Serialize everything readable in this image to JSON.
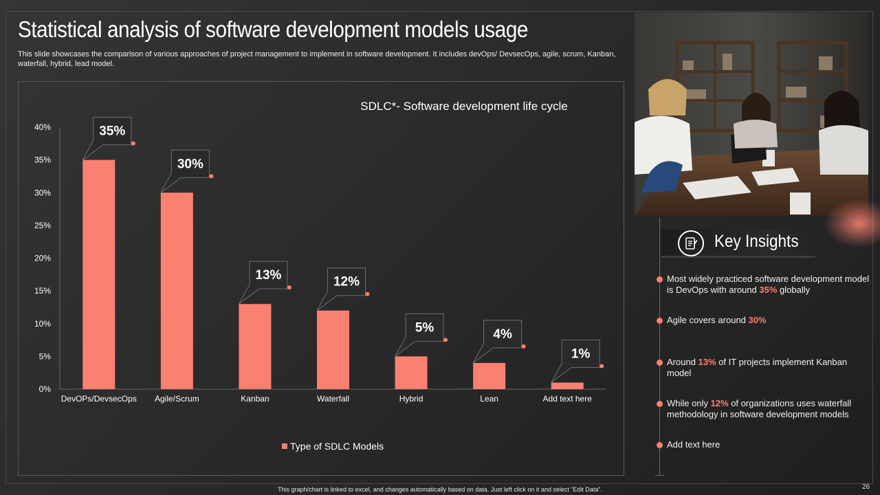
{
  "slide": {
    "title": "Statistical analysis of software development models usage",
    "subtitle": "This slide showcases the comparison of various approaches of project management to implement in software development. It includes devOps/ DevsecOps, agile, scrum, Kanban, waterfall, hybrid, lead model.",
    "footnote": "This graph/chart is linked to excel, and changes automatically based on data.  Just left click on it and select “Edit Data”.",
    "page_number": "26"
  },
  "colors": {
    "accent": "#fa8072",
    "background": "#2b2b2b",
    "text": "#ffffff"
  },
  "chart_data": {
    "type": "bar",
    "title": "SDLC*- Software development life cycle",
    "categories": [
      "DevOPs/DevsecOps",
      "Agile/Scrum",
      "Kanban",
      "Waterfall",
      "Hybrid",
      "Lean",
      "Add text here"
    ],
    "series": [
      {
        "name": "Type of SDLC Models",
        "values": [
          35,
          30,
          13,
          12,
          5,
          4,
          1
        ]
      }
    ],
    "data_labels": [
      "35%",
      "30%",
      "13%",
      "12%",
      "5%",
      "4%",
      "1%"
    ],
    "ylim": [
      0,
      40
    ],
    "yticks": [
      "0%",
      "5%",
      "10%",
      "15%",
      "20%",
      "25%",
      "30%",
      "35%",
      "40%"
    ],
    "legend_position": "bottom",
    "grid": false,
    "color": "#fa8072"
  },
  "insights": {
    "heading": "Key Insights",
    "icon": "notepad-icon",
    "items": [
      {
        "pre": "Most widely practiced software development model is DevOps with around ",
        "hl": "35%",
        "post": " globally"
      },
      {
        "pre": "Agile covers around ",
        "hl": "30%",
        "post": ""
      },
      {
        "pre": "Around ",
        "hl": "13%",
        "post": " of IT projects implement Kanban model"
      },
      {
        "pre": "While only ",
        "hl": "12%",
        "post": " of organizations uses waterfall methodology in software development models"
      },
      {
        "pre": "Add text here",
        "hl": "",
        "post": ""
      }
    ]
  },
  "photo": {
    "icon": "meeting-photo"
  }
}
